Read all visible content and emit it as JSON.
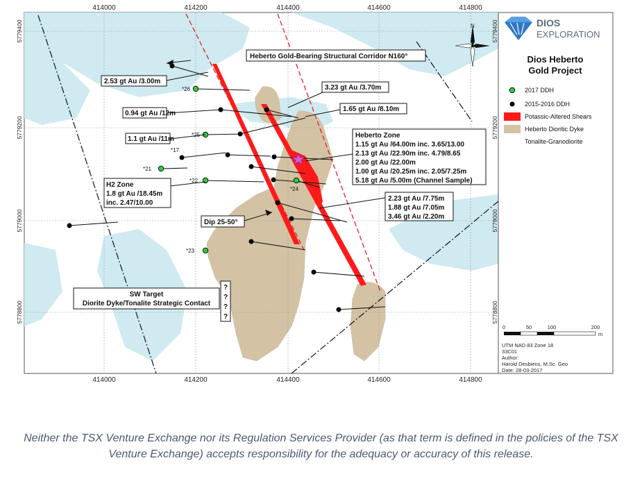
{
  "grid": {
    "x_ticks": [
      "414000",
      "414200",
      "414400",
      "414600",
      "414800"
    ],
    "y_ticks": [
      "5779400",
      "5779200",
      "5779000",
      "5778800"
    ]
  },
  "logo": {
    "line1": "DIOS",
    "line2": "EXPLORATION"
  },
  "project_title": {
    "line1": "Dios Heberto",
    "line2": "Gold Project"
  },
  "north_label": "N",
  "legend": {
    "items": [
      {
        "label": "2017 DDH",
        "color": "#35c93a"
      },
      {
        "label": "2015-2016 DDH",
        "color": "#000000"
      },
      {
        "label": "Potassic-Altered Shears",
        "color": "#ff1a1a"
      },
      {
        "label": "Heberto Dioritic Dyke",
        "color": "#d1bfa0"
      },
      {
        "label": "Tonalite-Granodiorite",
        "color": "#ffffff"
      }
    ]
  },
  "scale_bar": {
    "labels": [
      "0",
      "50",
      "100",
      "200"
    ],
    "unit": "m"
  },
  "credits": {
    "projection": "UTM NAD 83 Zone 18",
    "sheet": "33C01",
    "author_label": "Author:",
    "author": "Harold Desbiens, M.Sc. Geo",
    "date": "Date: 28-03-2017"
  },
  "callouts": {
    "corridor": "Heberto Gold-Bearing Structural Corridor N160°",
    "c1": "2.53 gt Au /3.00m",
    "c2": "3.23 gt Au /3.70m",
    "c3": "1.65 gt Au /8.10m",
    "c4": "0.94 gt Au /12m",
    "c5": "1.1 gt Au /11m",
    "heberto_zone": [
      "Heberto Zone",
      "1.15 gt Au /64.00m inc. 3.65/13.00",
      "2.13 gt Au /22.90m inc. 4.79/8.65",
      "2.00 gt Au /22.00m",
      "1.00 gt Au /20.25m inc. 2.05/7.25m",
      "5.18 gt Au /5.00m (Channel Sample)"
    ],
    "h2_zone": [
      "H2 Zone",
      "1.8 gt Au /18.45m",
      "inc. 2.47/10.00"
    ],
    "c6": [
      "2.23 gt Au /7.75m",
      "1.88 gt Au /7.05m",
      "3.46 gt Au /2.20m"
    ],
    "dip": "Dip 25-50°",
    "sw_target": [
      "SW Target",
      "Diorite Dyke/Tonalite Strategic Contact"
    ],
    "question_marks": [
      "?",
      "?",
      "?",
      "?"
    ]
  },
  "hole_labels": [
    "*26",
    "*25",
    "*17",
    "*21",
    "*22",
    "*24",
    "*23"
  ],
  "disclaimer": "Neither the TSX Venture Exchange nor its Regulation Services Provider (as that term is defined in the policies of the TSX Venture Exchange) accepts responsibility for the adequacy or accuracy of this release."
}
